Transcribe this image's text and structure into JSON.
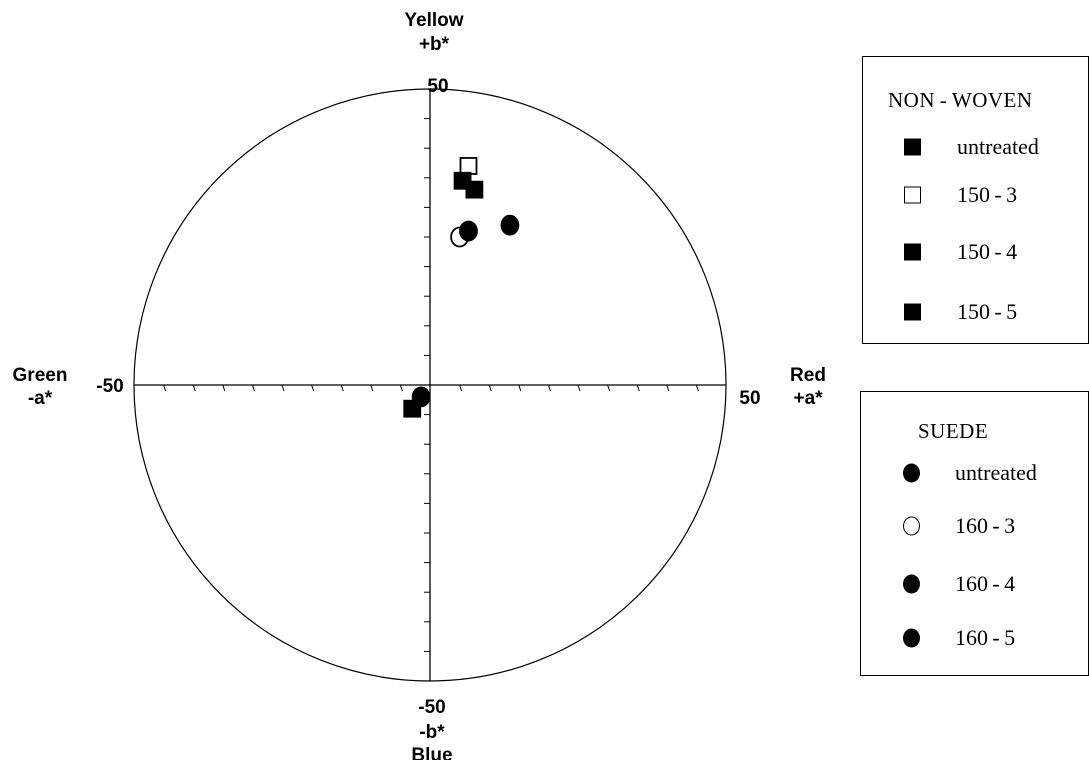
{
  "chart_data": {
    "type": "scatter",
    "title": "",
    "axes": {
      "x": {
        "name": "a*",
        "range": [
          -50,
          50
        ],
        "positive_label": [
          "Red",
          "+a*"
        ],
        "negative_label": [
          "Green",
          "-a*"
        ],
        "tick_labels": {
          "min": "-50",
          "max": "50"
        }
      },
      "y": {
        "name": "b*",
        "range": [
          -50,
          50
        ],
        "positive_label": [
          "Yellow",
          "+b*"
        ],
        "negative_label": [
          "-b*",
          "Blue"
        ],
        "tick_labels": {
          "min": "-50",
          "max": "50"
        }
      }
    },
    "grid": false,
    "boundary": "circle",
    "legends": [
      {
        "title": "NON-WOVEN",
        "title_display": "NON - WOVEN",
        "placement": "top-right",
        "marker": "square",
        "series": [
          {
            "name": "untreated",
            "display": "untreated",
            "filled": true,
            "x": -3,
            "y": -4
          },
          {
            "name": "150-3",
            "display": "150 - 3",
            "filled": false,
            "x": 6.5,
            "y": 37
          },
          {
            "name": "150-4",
            "display": "150 - 4",
            "filled": true,
            "x": 5.5,
            "y": 34.5
          },
          {
            "name": "150-5",
            "display": "150 - 5",
            "filled": true,
            "x": 7.5,
            "y": 33
          }
        ]
      },
      {
        "title": "SUEDE",
        "title_display": "SUEDE",
        "placement": "bottom-right",
        "marker": "circle",
        "series": [
          {
            "name": "untreated",
            "display": "untreated",
            "filled": true,
            "x": -1.5,
            "y": -2
          },
          {
            "name": "160-3",
            "display": "160 - 3",
            "filled": false,
            "x": 5,
            "y": 25
          },
          {
            "name": "160-4",
            "display": "160 - 4",
            "filled": true,
            "x": 6.5,
            "y": 26
          },
          {
            "name": "160-5",
            "display": "160 - 5",
            "filled": true,
            "x": 13.5,
            "y": 27
          }
        ]
      }
    ]
  }
}
